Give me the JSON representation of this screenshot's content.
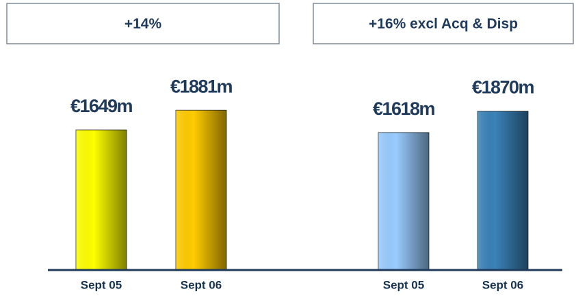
{
  "chart_data": [
    {
      "type": "bar",
      "title": "+14%",
      "categories": [
        "Sept 05",
        "Sept 06"
      ],
      "values": [
        1649,
        1881
      ],
      "value_labels": [
        "€1649m",
        "€1881m"
      ],
      "colors": [
        "#ffff00",
        "#ffcc00"
      ]
    },
    {
      "type": "bar",
      "title": "+16% excl Acq & Disp",
      "categories": [
        "Sept 05",
        "Sept 06"
      ],
      "values": [
        1618,
        1870
      ],
      "value_labels": [
        "€1618m",
        "€1870m"
      ],
      "colors": [
        "#99ccff",
        "#3a82b8"
      ]
    }
  ]
}
